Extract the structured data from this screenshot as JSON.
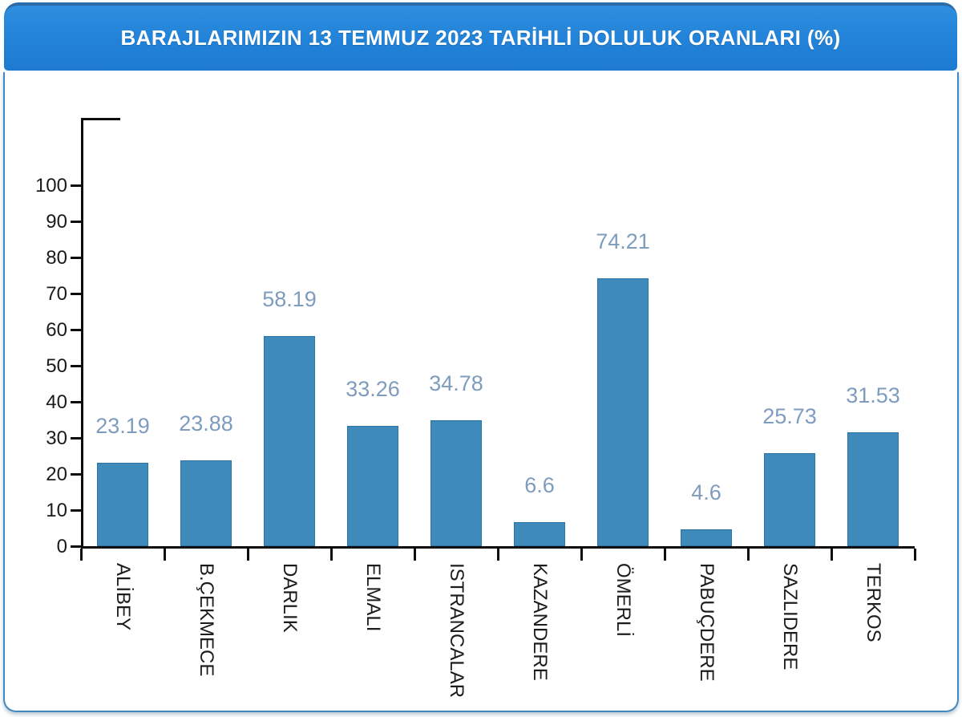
{
  "header": {
    "title": "BARAJLARIMIZIN 13 TEMMUZ 2023 TARİHLİ DOLULUK ORANLARI (%)"
  },
  "colors": {
    "header_bg": "#2384d9",
    "header_top_edge": "#2a6ca9",
    "card_border": "#4288c2",
    "bar_fill": "#3d8abb",
    "bar_border": "#2d74a4",
    "data_label": "#7e9cbe",
    "axis_line": "#0d0d0d",
    "tick_label": "#1a1a1a"
  },
  "chart_data": {
    "type": "bar",
    "title": "BARAJLARIMIZIN 13 TEMMUZ 2023 TARİHLİ DOLULUK ORANLARI (%)",
    "xlabel": "",
    "ylabel": "",
    "categories": [
      "ALİBEY",
      "B.ÇEKMECE",
      "DARLIK",
      "ELMALI",
      "ISTRANCALAR",
      "KAZANDERE",
      "ÖMERLİ",
      "PABUÇDERE",
      "SAZLIDERE",
      "TERKOS"
    ],
    "values": [
      23.19,
      23.88,
      58.19,
      33.26,
      34.78,
      6.6,
      74.21,
      4.6,
      25.73,
      31.53
    ],
    "data_labels": [
      "23.19",
      "23.88",
      "58.19",
      "33.26",
      "34.78",
      "6.6",
      "74.21",
      "4.6",
      "25.73",
      "31.53"
    ],
    "yticks": [
      0,
      10,
      20,
      30,
      40,
      50,
      60,
      70,
      80,
      90,
      100
    ],
    "ylim": [
      0,
      120
    ],
    "grid": false,
    "legend": "none",
    "category_label_rotation": "90deg-clockwise-read-top-to-bottom",
    "data_label_position": "above-bar"
  }
}
